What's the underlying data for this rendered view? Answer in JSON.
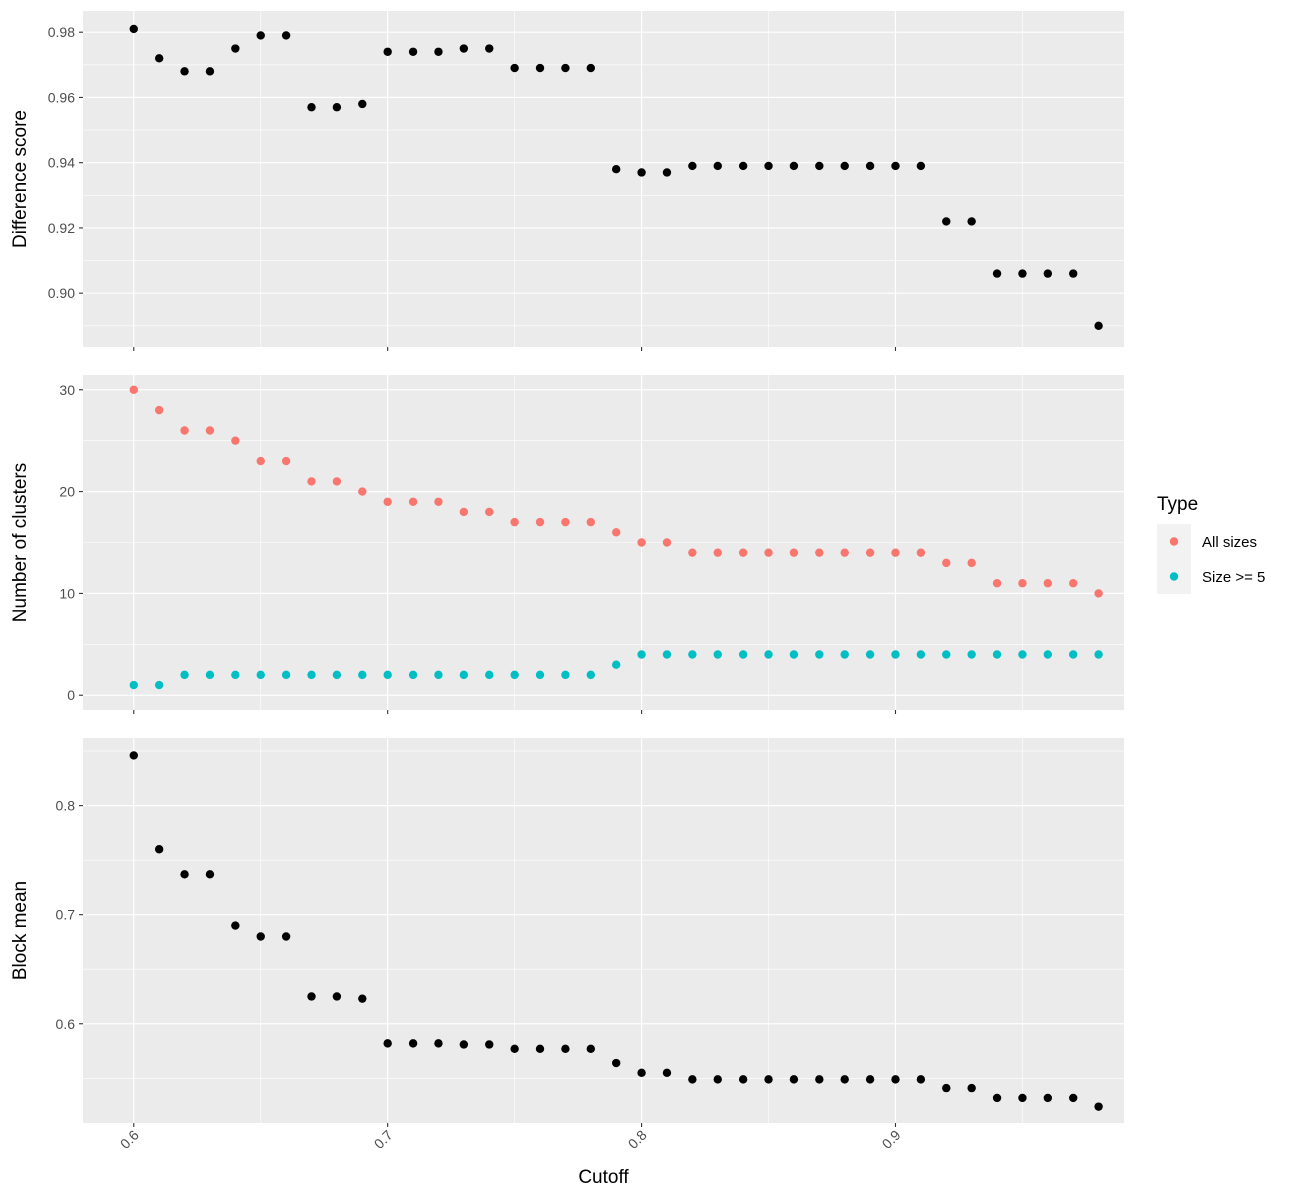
{
  "chart_data": [
    {
      "type": "scatter",
      "title": "",
      "xlabel": "",
      "ylabel": "Difference score",
      "xlim": [
        0.58,
        0.99
      ],
      "ylim": [
        0.8835,
        0.9865
      ],
      "yticks": [
        0.9,
        0.92,
        0.94,
        0.96,
        0.98
      ],
      "ytick_labels": [
        "0.90",
        "0.92",
        "0.94",
        "0.96",
        "0.98"
      ],
      "grid": true,
      "series": [
        {
          "color": "#000000",
          "x": [
            0.6,
            0.61,
            0.62,
            0.63,
            0.64,
            0.65,
            0.66,
            0.67,
            0.68,
            0.69,
            0.7,
            0.71,
            0.72,
            0.73,
            0.74,
            0.75,
            0.76,
            0.77,
            0.78,
            0.79,
            0.8,
            0.81,
            0.82,
            0.83,
            0.84,
            0.85,
            0.86,
            0.87,
            0.88,
            0.89,
            0.9,
            0.91,
            0.92,
            0.93,
            0.94,
            0.95,
            0.96,
            0.97,
            0.98
          ],
          "y": [
            0.981,
            0.972,
            0.968,
            0.968,
            0.975,
            0.979,
            0.979,
            0.957,
            0.957,
            0.958,
            0.974,
            0.974,
            0.974,
            0.975,
            0.975,
            0.969,
            0.969,
            0.969,
            0.969,
            0.938,
            0.937,
            0.937,
            0.939,
            0.939,
            0.939,
            0.939,
            0.939,
            0.939,
            0.939,
            0.939,
            0.939,
            0.939,
            0.922,
            0.922,
            0.906,
            0.906,
            0.906,
            0.906,
            0.89
          ]
        }
      ]
    },
    {
      "type": "scatter",
      "title": "",
      "xlabel": "",
      "ylabel": "Number of clusters",
      "xlim": [
        0.58,
        0.99
      ],
      "ylim": [
        -1.45,
        31.45
      ],
      "yticks": [
        0,
        10,
        20,
        30
      ],
      "ytick_labels": [
        "0",
        "10",
        "20",
        "30"
      ],
      "grid": true,
      "legend": {
        "title": "Type",
        "placement": "right"
      },
      "series": [
        {
          "name": "All sizes",
          "color": "#F8766D",
          "x": [
            0.6,
            0.61,
            0.62,
            0.63,
            0.64,
            0.65,
            0.66,
            0.67,
            0.68,
            0.69,
            0.7,
            0.71,
            0.72,
            0.73,
            0.74,
            0.75,
            0.76,
            0.77,
            0.78,
            0.79,
            0.8,
            0.81,
            0.82,
            0.83,
            0.84,
            0.85,
            0.86,
            0.87,
            0.88,
            0.89,
            0.9,
            0.91,
            0.92,
            0.93,
            0.94,
            0.95,
            0.96,
            0.97,
            0.98
          ],
          "y": [
            30,
            28,
            26,
            26,
            25,
            23,
            23,
            21,
            21,
            20,
            19,
            19,
            19,
            18,
            18,
            17,
            17,
            17,
            17,
            16,
            15,
            15,
            14,
            14,
            14,
            14,
            14,
            14,
            14,
            14,
            14,
            14,
            13,
            13,
            11,
            11,
            11,
            11,
            10
          ]
        },
        {
          "name": "Size >= 5",
          "color": "#00BFC4",
          "x": [
            0.6,
            0.61,
            0.62,
            0.63,
            0.64,
            0.65,
            0.66,
            0.67,
            0.68,
            0.69,
            0.7,
            0.71,
            0.72,
            0.73,
            0.74,
            0.75,
            0.76,
            0.77,
            0.78,
            0.79,
            0.8,
            0.81,
            0.82,
            0.83,
            0.84,
            0.85,
            0.86,
            0.87,
            0.88,
            0.89,
            0.9,
            0.91,
            0.92,
            0.93,
            0.94,
            0.95,
            0.96,
            0.97,
            0.98
          ],
          "y": [
            1,
            1,
            2,
            2,
            2,
            2,
            2,
            2,
            2,
            2,
            2,
            2,
            2,
            2,
            2,
            2,
            2,
            2,
            2,
            3,
            4,
            4,
            4,
            4,
            4,
            4,
            4,
            4,
            4,
            4,
            4,
            4,
            4,
            4,
            4,
            4,
            4,
            4,
            4
          ]
        }
      ]
    },
    {
      "type": "scatter",
      "title": "",
      "xlabel": "Cutoff",
      "ylabel": "Block mean",
      "xlim": [
        0.58,
        0.99
      ],
      "ylim": [
        0.509,
        0.862
      ],
      "yticks": [
        0.6,
        0.7,
        0.8
      ],
      "ytick_labels": [
        "0.6",
        "0.7",
        "0.8"
      ],
      "xticks": [
        0.6,
        0.7,
        0.8,
        0.9
      ],
      "xtick_labels": [
        "0.6",
        "0.7",
        "0.8",
        "0.9"
      ],
      "grid": true,
      "series": [
        {
          "color": "#000000",
          "x": [
            0.6,
            0.61,
            0.62,
            0.63,
            0.64,
            0.65,
            0.66,
            0.67,
            0.68,
            0.69,
            0.7,
            0.71,
            0.72,
            0.73,
            0.74,
            0.75,
            0.76,
            0.77,
            0.78,
            0.79,
            0.8,
            0.81,
            0.82,
            0.83,
            0.84,
            0.85,
            0.86,
            0.87,
            0.88,
            0.89,
            0.9,
            0.91,
            0.92,
            0.93,
            0.94,
            0.95,
            0.96,
            0.97,
            0.98
          ],
          "y": [
            0.846,
            0.76,
            0.737,
            0.737,
            0.69,
            0.68,
            0.68,
            0.625,
            0.625,
            0.623,
            0.582,
            0.582,
            0.582,
            0.581,
            0.581,
            0.577,
            0.577,
            0.577,
            0.577,
            0.564,
            0.555,
            0.555,
            0.549,
            0.549,
            0.549,
            0.549,
            0.549,
            0.549,
            0.549,
            0.549,
            0.549,
            0.549,
            0.541,
            0.541,
            0.532,
            0.532,
            0.532,
            0.532,
            0.524
          ]
        }
      ]
    }
  ]
}
